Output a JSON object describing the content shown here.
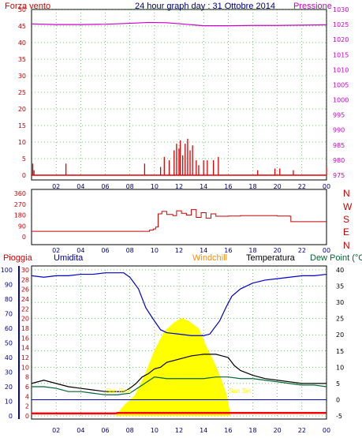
{
  "header": {
    "left_label": "Forza vento",
    "title": "24 hour graph day : 31 Ottobre 2014",
    "right_label": "Pressione"
  },
  "colors": {
    "wind": "#dd0000",
    "pressure": "#cc00cc",
    "direction": "#cc0000",
    "humidity": "#0000cc",
    "temperature": "#000000",
    "dewpoint": "#006633",
    "windchill": "#ff8c00",
    "solar": "#ffff00",
    "rain": "#ff0000",
    "frame": "#000000",
    "grid": "#008000"
  },
  "direction_labels": [
    "N",
    "W",
    "S",
    "E",
    "N"
  ],
  "bottom_header": {
    "rain": "Pioggia",
    "humidity": "Umidita",
    "windchill": "Windchill",
    "temperature": "Temperatura",
    "dewpoint": "Dew Point (°C"
  },
  "annotations": {
    "sun_rise": "Sun Rise",
    "sun_set": "Sun Set"
  },
  "chart_data": [
    {
      "type": "line",
      "name": "wind_and_pressure",
      "x_ticks": [
        "02",
        "04",
        "06",
        "08",
        "10",
        "12",
        "14",
        "16",
        "18",
        "20",
        "22",
        "00"
      ],
      "y_left": {
        "label": "Forza vento",
        "ylim": [
          0,
          50
        ],
        "ticks": [
          "50",
          "45",
          "40",
          "35",
          "30",
          "25",
          "20",
          "15",
          "10",
          "5",
          "0"
        ]
      },
      "y_right": {
        "label": "Pressione",
        "ylim": [
          975,
          1030
        ],
        "ticks": [
          "1030",
          "1025",
          "1020",
          "1015",
          "1010",
          "1005",
          "1000",
          "995",
          "990",
          "985",
          "980",
          "975"
        ]
      },
      "series": [
        {
          "name": "Pressione",
          "x": [
            0,
            2,
            4,
            6,
            8,
            9.5,
            11,
            12.5,
            14,
            16,
            18,
            20,
            22,
            24
          ],
          "y": [
            1025.2,
            1025.0,
            1025.0,
            1025.1,
            1025.4,
            1025.7,
            1025.6,
            1025.1,
            1024.6,
            1024.6,
            1024.7,
            1024.7,
            1024.8,
            1024.9
          ]
        },
        {
          "name": "Forza vento",
          "x": [
            0.1,
            0.2,
            2.8,
            9.2,
            10.5,
            10.8,
            11.2,
            11.6,
            11.8,
            12.0,
            12.1,
            12.3,
            12.5,
            12.7,
            12.9,
            13.1,
            13.4,
            13.6,
            14.0,
            14.3,
            14.8,
            15.2,
            18.4,
            19.8,
            20.2,
            21.3,
            24
          ],
          "y": [
            3.5,
            1.5,
            3.5,
            3.5,
            2.5,
            5.5,
            4.5,
            7.5,
            9.5,
            8,
            10.5,
            6,
            9.5,
            11,
            7.5,
            9,
            4.5,
            3,
            4.5,
            4.5,
            4.5,
            5.5,
            1.5,
            2,
            2,
            1.5,
            2.5
          ]
        }
      ]
    },
    {
      "type": "line",
      "name": "wind_direction",
      "x_ticks": [
        "02",
        "04",
        "06",
        "08",
        "10",
        "12",
        "14",
        "16",
        "18",
        "20",
        "22",
        "00"
      ],
      "y_left": {
        "ylim": [
          0,
          360
        ],
        "ticks": [
          "360",
          "270",
          "180",
          "90",
          "0"
        ]
      },
      "series": [
        {
          "name": "Direzione",
          "x": [
            0,
            9,
            9.6,
            9.9,
            10.1,
            10.3,
            10.6,
            11.0,
            11.5,
            11.8,
            12.2,
            12.6,
            13.0,
            13.4,
            13.8,
            14.2,
            14.6,
            15.0,
            16.0,
            17.0,
            19.0,
            20.0,
            21.0,
            21.1,
            23.0,
            24
          ],
          "y": [
            45,
            45,
            55,
            65,
            80,
            190,
            210,
            185,
            175,
            215,
            195,
            180,
            225,
            160,
            200,
            155,
            190,
            170,
            172,
            175,
            175,
            172,
            170,
            125,
            125,
            125
          ]
        }
      ]
    },
    {
      "type": "line",
      "name": "rain_humidity_temperature",
      "x_ticks": [
        "02",
        "04",
        "06",
        "08",
        "10",
        "12",
        "14",
        "16",
        "18",
        "20",
        "22",
        "00"
      ],
      "y_left_outer": {
        "label": "Umidita",
        "ylim": [
          0,
          100
        ],
        "ticks": [
          "100",
          "90",
          "80",
          "70",
          "60",
          "50",
          "40",
          "30",
          "20",
          "10",
          "0"
        ]
      },
      "y_left_inner": {
        "label": "Pioggia",
        "ylim": [
          0,
          30
        ],
        "ticks": [
          "30",
          "28",
          "26",
          "24",
          "22",
          "20",
          "18",
          "16",
          "14",
          "12",
          "10",
          "8",
          "6",
          "4",
          "2",
          "0"
        ]
      },
      "y_right": {
        "label": "Dew Point (°C",
        "ylim": [
          -5,
          40
        ],
        "ticks": [
          "40",
          "35",
          "30",
          "25",
          "20",
          "15",
          "10",
          "5",
          "0",
          "-5"
        ]
      },
      "series": [
        {
          "name": "Umidita",
          "x": [
            0,
            1,
            2,
            3,
            4,
            5,
            6,
            7,
            7.5,
            8,
            8.7,
            9.3,
            10,
            10.5,
            11,
            12,
            13,
            14,
            14.5,
            15.3,
            15.8,
            16.3,
            17,
            18,
            19,
            20,
            21,
            22,
            23,
            24
          ],
          "y": [
            96,
            95,
            96,
            96,
            97,
            97,
            98,
            98,
            98,
            95,
            87,
            74,
            65,
            59,
            57,
            56,
            55,
            55,
            56,
            65,
            74,
            82,
            87,
            91,
            93,
            94,
            95,
            96,
            96,
            97
          ]
        },
        {
          "name": "Temperatura",
          "x": [
            0,
            1,
            2,
            3,
            4,
            5,
            6,
            7,
            7.5,
            8,
            8.5,
            9,
            9.5,
            10,
            10.5,
            11,
            12,
            13,
            14,
            15,
            15.5,
            16,
            16.5,
            17,
            18,
            19,
            20,
            21,
            22,
            23,
            24
          ],
          "y": [
            5,
            6,
            5,
            4,
            3.5,
            3,
            2.5,
            2.5,
            2.5,
            3.5,
            5,
            7,
            8,
            9.5,
            10,
            11.5,
            12.5,
            13.5,
            14,
            14,
            13.5,
            13,
            10.5,
            9,
            7.5,
            6.5,
            6,
            5.5,
            5,
            5,
            5
          ]
        },
        {
          "name": "Dew Point",
          "x": [
            0,
            1,
            2,
            3,
            4,
            5,
            6,
            7,
            8,
            9,
            10,
            11,
            12,
            13,
            14,
            15,
            16,
            17,
            18,
            19,
            20,
            21,
            22,
            23,
            24
          ],
          "y": [
            4,
            4,
            3.5,
            2.5,
            2.5,
            2,
            1.5,
            1.5,
            2,
            4.5,
            7,
            6.5,
            6.5,
            6.5,
            6.5,
            7,
            7,
            6.5,
            6.5,
            6,
            5.5,
            5,
            4.5,
            4.5,
            4
          ]
        },
        {
          "name": "Solar",
          "x": [
            0,
            6.8,
            7.6,
            8.4,
            9.2,
            10,
            10.8,
            11.6,
            12.2,
            12.8,
            13.6,
            14.2,
            14.8,
            15.4,
            15.9,
            16.2,
            24
          ],
          "y": [
            0,
            0,
            8,
            14,
            28,
            45,
            58,
            64,
            67,
            65,
            60,
            48,
            38,
            26,
            14,
            0,
            0
          ]
        },
        {
          "name": "Pioggia",
          "x": [
            0,
            6.8,
            7.0,
            24
          ],
          "y": [
            0.5,
            0.5,
            0.6,
            0.6
          ]
        }
      ]
    }
  ]
}
